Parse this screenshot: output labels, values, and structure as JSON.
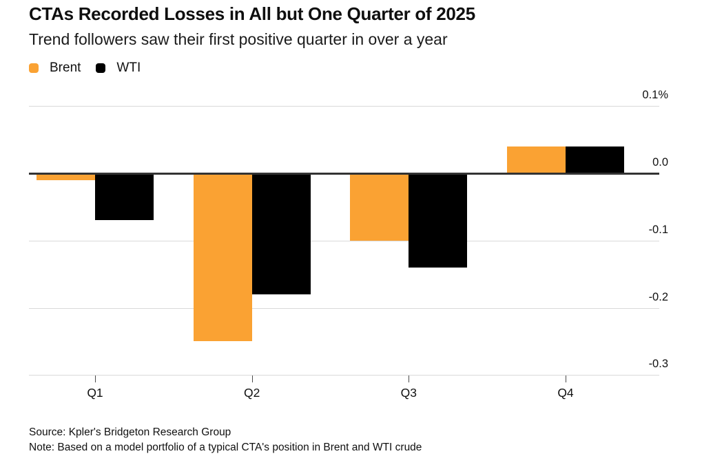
{
  "header": {
    "title": "CTAs Recorded Losses in All but One Quarter of 2025",
    "subtitle": "Trend followers saw their first positive quarter in over a year"
  },
  "legend": [
    {
      "label": "Brent",
      "color": "#FAA233"
    },
    {
      "label": "WTI",
      "color": "#000000"
    }
  ],
  "chart_data": {
    "type": "bar",
    "categories": [
      "Q1",
      "Q2",
      "Q3",
      "Q4"
    ],
    "series": [
      {
        "name": "Brent",
        "color": "#FAA233",
        "values": [
          -0.01,
          -0.25,
          -0.1,
          0.04
        ]
      },
      {
        "name": "WTI",
        "color": "#000000",
        "values": [
          -0.07,
          -0.18,
          -0.14,
          0.04
        ]
      }
    ],
    "unit": "%",
    "ylim": [
      -0.3,
      0.1
    ],
    "y_ticks": [
      {
        "value": 0.1,
        "label": "0.1%"
      },
      {
        "value": 0.0,
        "label": "0.0"
      },
      {
        "value": -0.1,
        "label": "-0.1"
      },
      {
        "value": -0.2,
        "label": "-0.2"
      },
      {
        "value": -0.3,
        "label": "-0.3"
      }
    ],
    "grid": true,
    "legend_position": "top-left",
    "title": "CTAs Recorded Losses in All but One Quarter of 2025",
    "xlabel": "",
    "ylabel": ""
  },
  "footer": {
    "source": "Source: Kpler's Bridgeton Research Group",
    "note": "Note: Based on a model portfolio of a typical CTA's position in Brent and WTI crude"
  },
  "colors": {
    "accent_orange": "#FAA233",
    "bar_black": "#000000",
    "gridline": "#D9D9D9",
    "zero_line": "#333333",
    "axis_tick": "#4A4A4A",
    "text": "#111111",
    "background": "#FFFFFF"
  }
}
